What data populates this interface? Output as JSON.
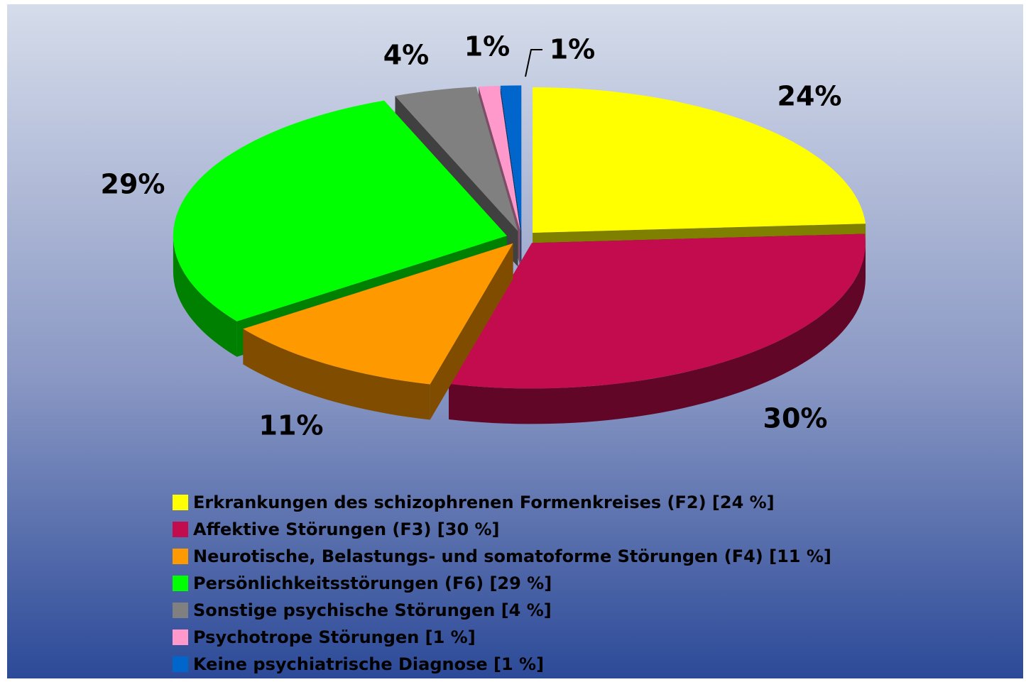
{
  "chart_data": {
    "type": "pie",
    "categories": [
      "Erkrankungen des schizophrenen Formenkreises (F2) [24 %]",
      "Affektive Störungen (F3) [30 %]",
      "Neurotische, Belastungs- und somatoforme Störungen (F4) [11 %]",
      "Persönlichkeitsstörungen (F6) [29 %]",
      "Sonstige psychische Störungen [4 %]",
      "Psychotrope Störungen [1 %]",
      "Keine psychiatrische Diagnose [1 %]"
    ],
    "values": [
      24,
      30,
      11,
      29,
      4,
      1,
      1
    ],
    "value_labels": [
      "24%",
      "30%",
      "11%",
      "29%",
      "4%",
      "1%",
      "1%"
    ],
    "colors": [
      "#ffff00",
      "#c20c4e",
      "#ff9900",
      "#00ff00",
      "#808080",
      "#ff99cc",
      "#0066cc"
    ],
    "three_d": true,
    "exploded": true,
    "legend": "bottom"
  }
}
